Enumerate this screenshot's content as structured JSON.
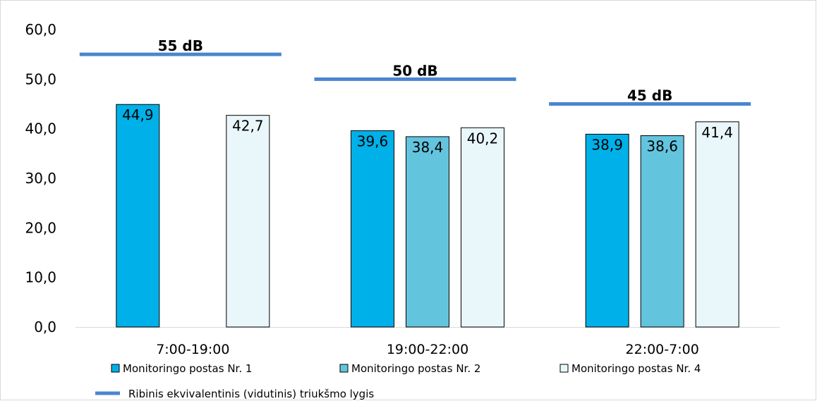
{
  "chart_data": {
    "type": "bar",
    "categories": [
      "7:00-19:00",
      "19:00-22:00",
      "22:00-7:00"
    ],
    "ylim": [
      0,
      60
    ],
    "yticks": [
      "0,0",
      "10,0",
      "20,0",
      "30,0",
      "40,0",
      "50,0",
      "60,0"
    ],
    "grid": false,
    "legend_position": "bottom",
    "series": [
      {
        "name": "Monitoringo postas Nr. 1",
        "color": "#00B0E8",
        "values": [
          44.9,
          39.6,
          38.9
        ],
        "labels": [
          "44,9",
          "39,6",
          "38,9"
        ]
      },
      {
        "name": "Monitoringo postas Nr. 2",
        "color": "#63C4DE",
        "values": [
          null,
          38.4,
          38.6
        ],
        "labels": [
          "",
          "38,4",
          "38,6"
        ]
      },
      {
        "name": "Monitoringo postas Nr. 4",
        "color": "#E9F7FA",
        "values": [
          42.7,
          40.2,
          41.4
        ],
        "labels": [
          "42,7",
          "40,2",
          "41,4"
        ]
      }
    ],
    "limit_series": {
      "name": "Ribinis ekvivalentinis (vidutinis) triukšmo lygis",
      "color": "#4A86D0",
      "values": [
        55,
        50,
        45
      ],
      "labels": [
        "55 dB",
        "50 dB",
        "45 dB"
      ]
    }
  }
}
